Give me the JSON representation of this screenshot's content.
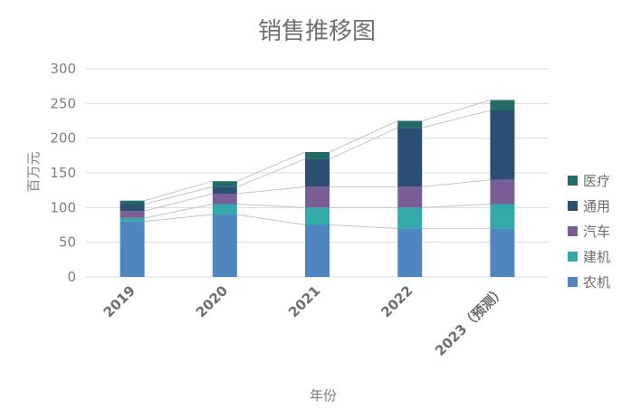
{
  "chart_data": {
    "type": "bar",
    "stacked": true,
    "title": "销售推移图",
    "xlabel": "年份",
    "ylabel": "百万元",
    "ylim": [
      0,
      300
    ],
    "yticks": [
      0,
      50,
      100,
      150,
      200,
      250,
      300
    ],
    "grid": true,
    "legend_position": "right",
    "series_connectors": true,
    "categories": [
      "2019",
      "2020",
      "2021",
      "2022",
      "2023（预测）"
    ],
    "series": [
      {
        "name": "农机",
        "color": "#4f86c0",
        "values": [
          80,
          90,
          75,
          70,
          70
        ]
      },
      {
        "name": "建机",
        "color": "#33aaa9",
        "values": [
          5,
          15,
          25,
          30,
          35
        ]
      },
      {
        "name": "汽车",
        "color": "#7a5f96",
        "values": [
          10,
          15,
          30,
          30,
          35
        ]
      },
      {
        "name": "通用",
        "color": "#2c5074",
        "values": [
          10,
          10,
          40,
          85,
          100
        ]
      },
      {
        "name": "医疗",
        "color": "#236a69",
        "values": [
          5,
          8,
          10,
          10,
          15
        ]
      }
    ]
  }
}
